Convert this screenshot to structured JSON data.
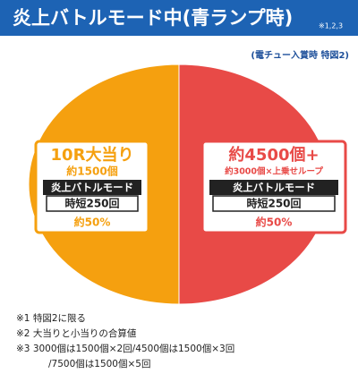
{
  "chart_data": {
    "type": "pie",
    "title": "炎上バトルモード中(青ランプ時)",
    "title_note": "※1,2,3",
    "subtitle": "(電チュー入賞時 特図2)",
    "categories": [
      "10R大当り",
      "約4500個+"
    ],
    "values": [
      50,
      50
    ],
    "value_labels": [
      "約50%",
      "約50%"
    ],
    "colors": [
      "#f5a00f",
      "#e84a47"
    ],
    "details": [
      [
        "約1500個",
        "炎上バトルモード",
        "時短250回"
      ],
      [
        "約3000個×上乗せループ",
        "炎上バトルモード",
        "時短250回"
      ]
    ],
    "footnotes": [
      "※1 特図2に限る",
      "※2 大当りと小当りの合算値",
      "※3 3000個は1500個×2回/4500個は1500個×3回",
      "/7500個は1500個×5回"
    ]
  }
}
